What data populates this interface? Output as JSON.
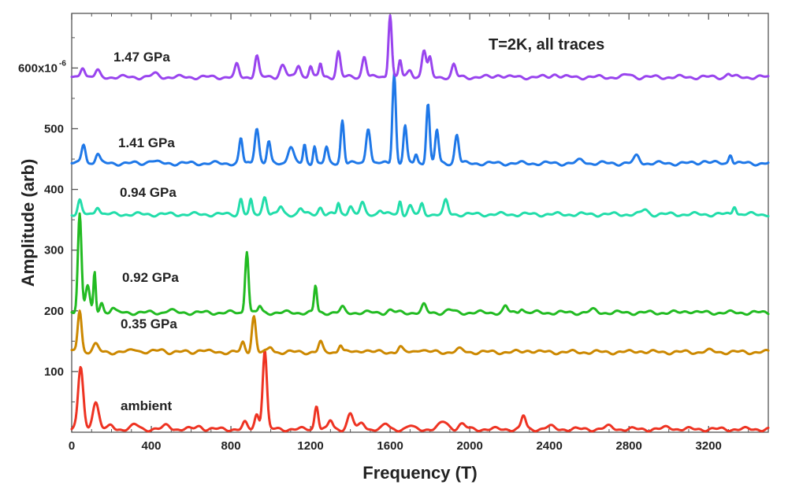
{
  "chart_data": {
    "type": "line",
    "annotation": "T=2K, all traces",
    "xlabel": "Frequency (T)",
    "ylabel": "Amplitude (arb)",
    "xlim": [
      0,
      3500
    ],
    "ylim": [
      0,
      690
    ],
    "x_ticks": [
      0,
      400,
      800,
      1200,
      1600,
      2000,
      2400,
      2800,
      3200
    ],
    "y_ticks": [
      {
        "value": 100,
        "label": "100"
      },
      {
        "value": 200,
        "label": "200"
      },
      {
        "value": 300,
        "label": "300"
      },
      {
        "value": 400,
        "label": "400"
      },
      {
        "value": 500,
        "label": "500"
      },
      {
        "value": 600,
        "label": "600x10"
      }
    ],
    "y_top_label_exponent": "-6",
    "series": [
      {
        "name": "ambient",
        "color": "#ee3322",
        "baseline": 5,
        "peaks": [
          [
            45,
            102,
            18
          ],
          [
            120,
            45,
            22
          ],
          [
            200,
            6,
            18
          ],
          [
            320,
            7,
            25
          ],
          [
            480,
            6,
            25
          ],
          [
            640,
            5,
            25
          ],
          [
            870,
            10,
            15
          ],
          [
            930,
            25,
            15
          ],
          [
            970,
            130,
            15
          ],
          [
            1230,
            40,
            13
          ],
          [
            1300,
            14,
            15
          ],
          [
            1400,
            26,
            20
          ],
          [
            1460,
            10,
            20
          ],
          [
            1580,
            8,
            20
          ],
          [
            1700,
            5,
            20
          ],
          [
            1870,
            12,
            30
          ],
          [
            1960,
            8,
            25
          ],
          [
            2270,
            22,
            15
          ],
          [
            2400,
            4,
            30
          ],
          [
            2700,
            4,
            30
          ],
          [
            3000,
            3,
            30
          ]
        ]
      },
      {
        "name": "0.35 GPa",
        "color": "#cc8800",
        "baseline": 132,
        "peaks": [
          [
            40,
            70,
            14
          ],
          [
            120,
            12,
            20
          ],
          [
            320,
            5,
            25
          ],
          [
            450,
            4,
            25
          ],
          [
            650,
            4,
            25
          ],
          [
            860,
            15,
            13
          ],
          [
            915,
            60,
            14
          ],
          [
            1000,
            8,
            15
          ],
          [
            1250,
            16,
            14
          ],
          [
            1350,
            13,
            13
          ],
          [
            1470,
            4,
            25
          ],
          [
            1650,
            8,
            15
          ],
          [
            1750,
            5,
            25
          ],
          [
            1950,
            4,
            25
          ],
          [
            2300,
            3,
            30
          ],
          [
            2850,
            2,
            30
          ],
          [
            3200,
            2,
            30
          ]
        ]
      },
      {
        "name": "0.92 GPa",
        "color": "#22bb22",
        "baseline": 197,
        "peaks": [
          [
            40,
            165,
            13
          ],
          [
            80,
            45,
            15
          ],
          [
            115,
            65,
            8
          ],
          [
            150,
            18,
            12
          ],
          [
            205,
            8,
            15
          ],
          [
            490,
            4,
            25
          ],
          [
            880,
            103,
            12
          ],
          [
            945,
            10,
            12
          ],
          [
            1225,
            44,
            10
          ],
          [
            1360,
            8,
            15
          ],
          [
            1600,
            4,
            20
          ],
          [
            1770,
            12,
            15
          ],
          [
            1900,
            4,
            25
          ],
          [
            2180,
            10,
            15
          ],
          [
            2260,
            8,
            15
          ],
          [
            2620,
            4,
            25
          ],
          [
            3100,
            3,
            30
          ]
        ]
      },
      {
        "name": "0.94 GPa",
        "color": "#22ddaa",
        "baseline": 359,
        "peaks": [
          [
            40,
            22,
            13
          ],
          [
            130,
            14,
            15
          ],
          [
            850,
            26,
            12
          ],
          [
            900,
            22,
            10
          ],
          [
            970,
            30,
            15
          ],
          [
            1050,
            12,
            15
          ],
          [
            1150,
            10,
            15
          ],
          [
            1250,
            12,
            15
          ],
          [
            1340,
            18,
            10
          ],
          [
            1400,
            15,
            15
          ],
          [
            1460,
            18,
            15
          ],
          [
            1550,
            8,
            15
          ],
          [
            1650,
            22,
            10
          ],
          [
            1700,
            14,
            15
          ],
          [
            1760,
            16,
            12
          ],
          [
            1880,
            22,
            15
          ],
          [
            2880,
            8,
            20
          ],
          [
            3330,
            15,
            12
          ]
        ]
      },
      {
        "name": "1.41 GPa",
        "color": "#1f78e8",
        "baseline": 443,
        "peaks": [
          [
            60,
            32,
            14
          ],
          [
            130,
            16,
            15
          ],
          [
            400,
            5,
            25
          ],
          [
            850,
            40,
            12
          ],
          [
            930,
            60,
            15
          ],
          [
            990,
            35,
            12
          ],
          [
            1100,
            28,
            20
          ],
          [
            1170,
            30,
            10
          ],
          [
            1220,
            30,
            10
          ],
          [
            1280,
            25,
            12
          ],
          [
            1360,
            72,
            12
          ],
          [
            1490,
            60,
            15
          ],
          [
            1620,
            150,
            12
          ],
          [
            1675,
            62,
            12
          ],
          [
            1730,
            15,
            10
          ],
          [
            1790,
            100,
            12
          ],
          [
            1835,
            55,
            12
          ],
          [
            1935,
            48,
            14
          ],
          [
            2560,
            5,
            25
          ],
          [
            2840,
            12,
            20
          ],
          [
            3180,
            4,
            30
          ],
          [
            3310,
            16,
            12
          ]
        ]
      },
      {
        "name": "1.47 GPa",
        "color": "#9944ee",
        "baseline": 585,
        "peaks": [
          [
            55,
            18,
            15
          ],
          [
            130,
            10,
            15
          ],
          [
            420,
            5,
            25
          ],
          [
            830,
            20,
            14
          ],
          [
            930,
            35,
            14
          ],
          [
            1060,
            20,
            20
          ],
          [
            1140,
            20,
            15
          ],
          [
            1200,
            20,
            12
          ],
          [
            1250,
            22,
            10
          ],
          [
            1340,
            42,
            14
          ],
          [
            1470,
            35,
            15
          ],
          [
            1600,
            105,
            12
          ],
          [
            1650,
            28,
            10
          ],
          [
            1700,
            12,
            15
          ],
          [
            1770,
            45,
            15
          ],
          [
            1800,
            30,
            12
          ],
          [
            1920,
            20,
            14
          ],
          [
            2150,
            4,
            25
          ],
          [
            2430,
            5,
            25
          ],
          [
            2800,
            4,
            25
          ],
          [
            3300,
            6,
            15
          ]
        ]
      }
    ]
  }
}
